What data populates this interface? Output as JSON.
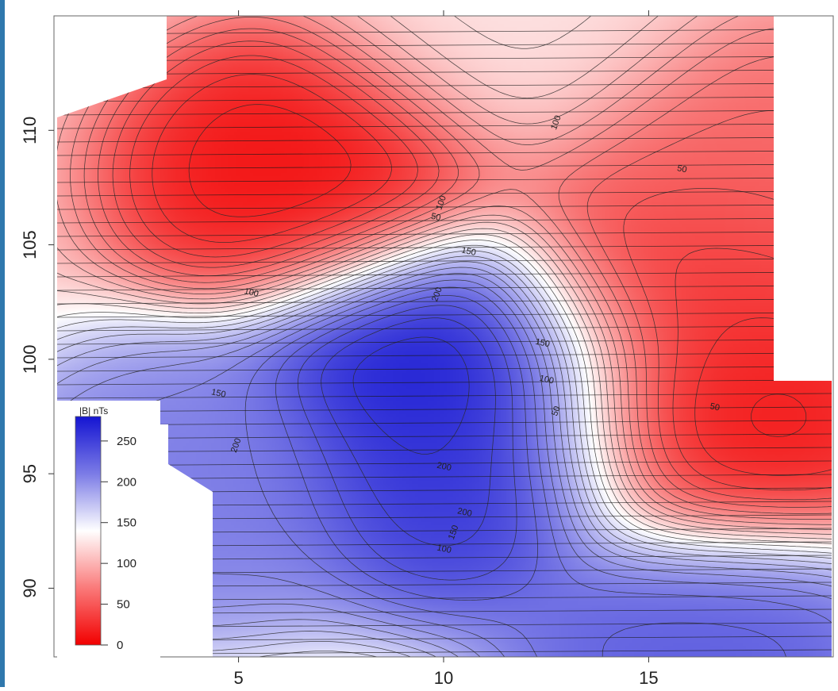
{
  "chart_data": {
    "type": "heatmap",
    "subtype": "contour-map",
    "xlim": [
      0.5,
      19.5
    ],
    "ylim": [
      87,
      115
    ],
    "x_ticks": [
      5,
      10,
      15
    ],
    "y_ticks": [
      90,
      95,
      100,
      105,
      110
    ],
    "x_tick_labels": [
      "5",
      "10",
      "15"
    ],
    "y_tick_labels": [
      "90",
      "95",
      "100",
      "105",
      "110"
    ],
    "colorbar": {
      "title": "|B| nTs",
      "min": 0,
      "max": 280,
      "ticks": [
        0,
        50,
        100,
        150,
        200,
        250
      ],
      "tick_labels": [
        "0",
        "50",
        "100",
        "150",
        "200",
        "250"
      ],
      "colors": {
        "low": "#f20000",
        "mid": "#ffffff",
        "high": "#1414d2"
      },
      "placement": "lower-left inside plot"
    },
    "features": [
      {
        "kind": "low",
        "x": 7.2,
        "y": 108.0,
        "value": 5
      },
      {
        "kind": "high",
        "x": 10.3,
        "y": 100.5,
        "value": 285
      },
      {
        "kind": "high",
        "x": 10.5,
        "y": 95.2,
        "value": 265
      },
      {
        "kind": "low",
        "x": 16.5,
        "y": 97.0,
        "value": 10
      },
      {
        "kind": "low",
        "x": 15.5,
        "y": 103.5,
        "value": 25
      },
      {
        "kind": "low",
        "x": 16.5,
        "y": 108.5,
        "value": 55
      },
      {
        "kind": "high",
        "x": 16.2,
        "y": 87.5,
        "value": 240
      },
      {
        "kind": "high",
        "x": 3.8,
        "y": 94.5,
        "value": 220
      },
      {
        "kind": "high",
        "x": 11.8,
        "y": 113.5,
        "value": 125
      }
    ],
    "contour_labels": [
      {
        "text": "100",
        "x": 10.0,
        "y": 106.8
      },
      {
        "text": "100",
        "x": 5.3,
        "y": 102.8
      },
      {
        "text": "150",
        "x": 10.6,
        "y": 104.6
      },
      {
        "text": "200",
        "x": 9.9,
        "y": 102.8
      },
      {
        "text": "150",
        "x": 12.4,
        "y": 100.6
      },
      {
        "text": "150",
        "x": 4.5,
        "y": 98.4
      },
      {
        "text": "200",
        "x": 5.0,
        "y": 96.2
      },
      {
        "text": "200",
        "x": 10.0,
        "y": 95.2
      },
      {
        "text": "200",
        "x": 10.5,
        "y": 93.2
      },
      {
        "text": "150",
        "x": 10.3,
        "y": 92.4
      },
      {
        "text": "100",
        "x": 10.0,
        "y": 91.6
      },
      {
        "text": "100",
        "x": 12.5,
        "y": 99.0
      },
      {
        "text": "50",
        "x": 12.8,
        "y": 97.7
      },
      {
        "text": "50",
        "x": 16.6,
        "y": 97.8
      },
      {
        "text": "50",
        "x": 15.8,
        "y": 108.2
      },
      {
        "text": "100",
        "x": 12.8,
        "y": 110.3
      },
      {
        "text": "50",
        "x": 9.8,
        "y": 106.1
      }
    ]
  }
}
